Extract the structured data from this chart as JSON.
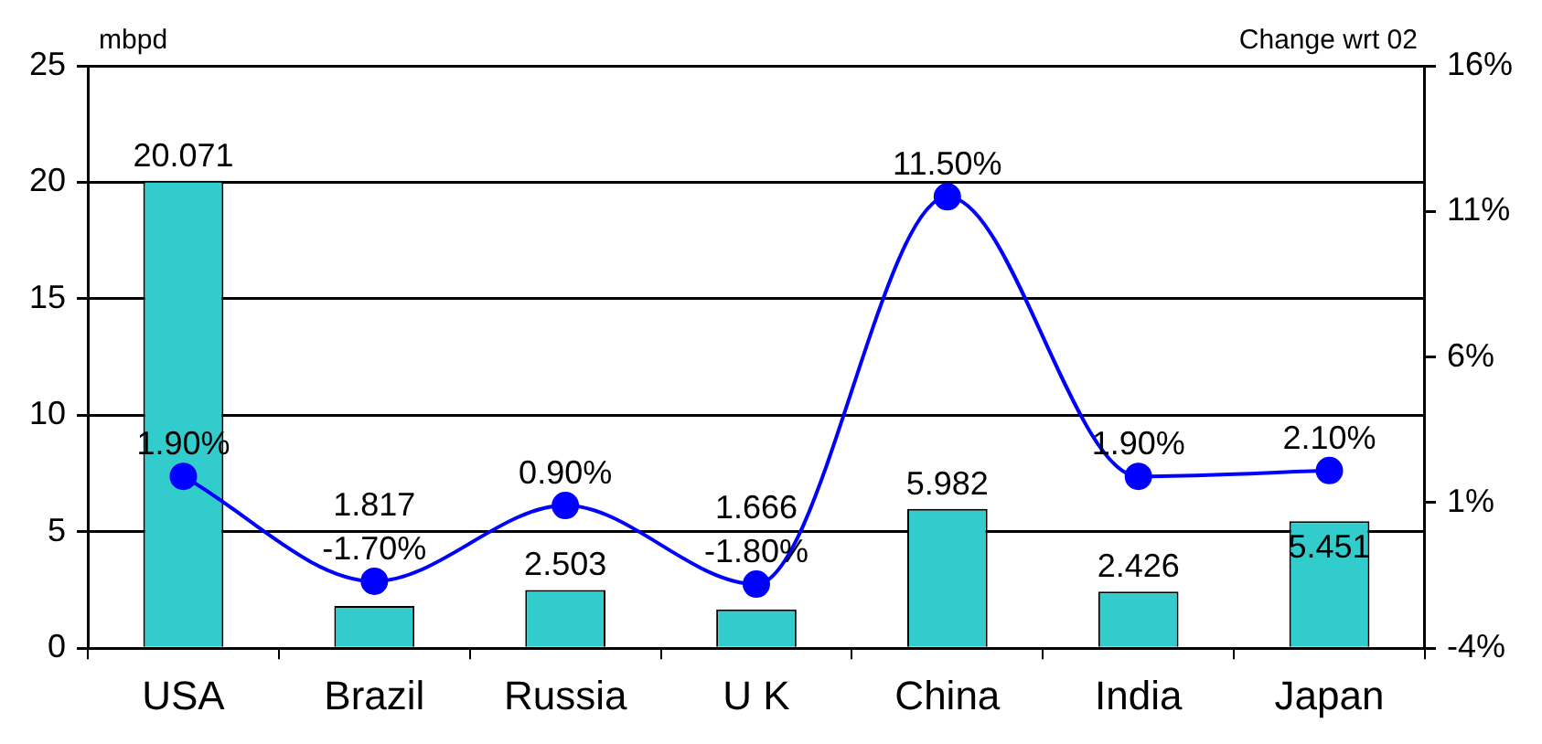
{
  "chart_data": {
    "type": "bar",
    "ylabel": "mbpd",
    "y2label": "Change wrt 02",
    "categories": [
      "USA",
      "Brazil",
      "Russia",
      "U K",
      "China",
      "India",
      "Japan"
    ],
    "series": [
      {
        "color": "#33cccc",
        "values": [
          20.071,
          1.817,
          2.503,
          1.666,
          5.982,
          2.426,
          5.451
        ],
        "value_labels": [
          "20.071",
          "1.817",
          "2.503",
          "1.666",
          "5.982",
          "2.426",
          "5.451"
        ]
      },
      {
        "type": "line",
        "axis": "y2",
        "color": "#0000ff",
        "marker": "circle",
        "values": [
          1.9,
          -1.7,
          0.9,
          -1.8,
          11.5,
          1.9,
          2.1
        ],
        "value_labels": [
          "1.90%",
          "-1.70%",
          "0.90%",
          "-1.80%",
          "11.50%",
          "1.90%",
          "2.10%"
        ]
      }
    ],
    "ylim": [
      0,
      25
    ],
    "yticks": [
      0,
      5,
      10,
      15,
      20,
      25
    ],
    "y2lim": [
      -4,
      16
    ],
    "y2ticks": [
      {
        "value": -4,
        "label": "-4%"
      },
      {
        "value": 1,
        "label": "1%"
      },
      {
        "value": 6,
        "label": "6%"
      },
      {
        "value": 11,
        "label": "11%"
      },
      {
        "value": 16,
        "label": "16%"
      }
    ],
    "grid": "y",
    "legend": false
  }
}
